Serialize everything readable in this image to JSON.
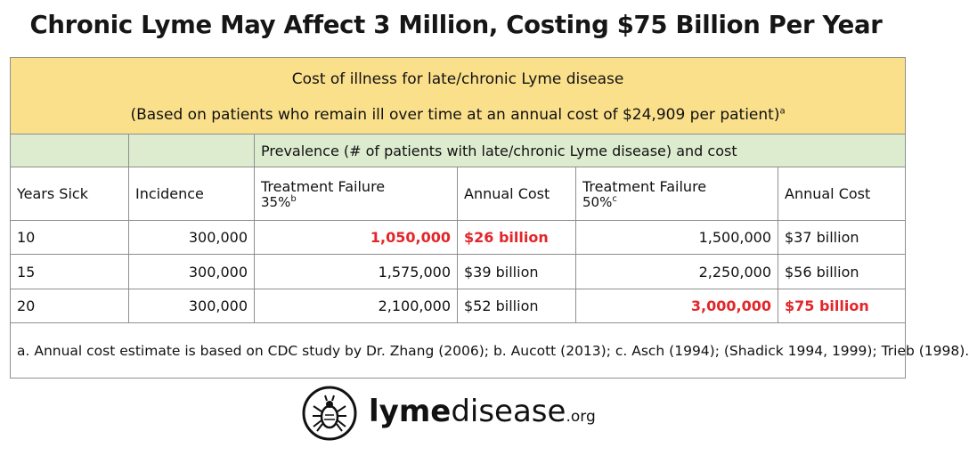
{
  "title": "Chronic Lyme May Affect 3 Million, Costing $75 Billion Per Year",
  "table": {
    "header_line1": "Cost of illness for late/chronic Lyme disease",
    "header_line2": "(Based on patients who remain ill over time at an annual cost of  $24,909 per patient)",
    "header_line2_sup": "a",
    "prevalence_label": "Prevalence (# of patients with late/chronic Lyme disease) and cost",
    "columns": {
      "years_sick": "Years Sick",
      "incidence": "Incidence",
      "tf35_label": "Treatment Failure",
      "tf35_pct": "35%",
      "tf35_sup": "b",
      "annual_cost_1": "Annual Cost",
      "tf50_label": "Treatment Failure",
      "tf50_pct": "50%",
      "tf50_sup": "c",
      "annual_cost_2": "Annual Cost"
    },
    "rows": [
      {
        "years": "10",
        "incidence": "300,000",
        "tf35": "1,050,000",
        "cost35": "$26 billion",
        "tf50": "1,500,000",
        "cost50": "$37 billion"
      },
      {
        "years": "15",
        "incidence": "300,000",
        "tf35": "1,575,000",
        "cost35": "$39 billion",
        "tf50": "2,250,000",
        "cost50": "$56 billion"
      },
      {
        "years": "20",
        "incidence": "300,000",
        "tf35": "2,100,000",
        "cost35": "$52 billion",
        "tf50": "3,000,000",
        "cost50": "$75 billion"
      }
    ],
    "highlight_color": "#e3262a",
    "header_color": "#fbe08c",
    "subheader_color": "#ddeccf",
    "notes": "a. Annual cost estimate is based on CDC study by Dr. Zhang (2006); b. Aucott (2013); c. Asch (1994); (Shadick 1994, 1999); Trieb (1998)."
  },
  "logo": {
    "icon": "tick-icon",
    "text_bold": "lyme",
    "text_light": "disease",
    "text_suffix": ".org"
  }
}
